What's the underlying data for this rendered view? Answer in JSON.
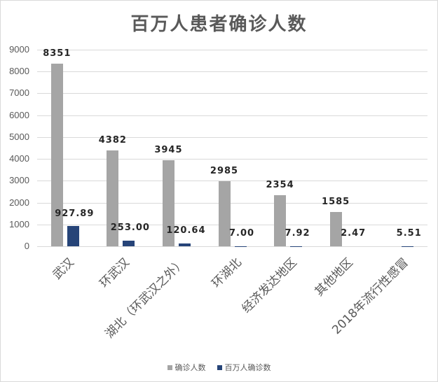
{
  "chart_data": {
    "type": "bar",
    "title": "百万人患者确诊人数",
    "xlabel": "",
    "ylabel": "",
    "ylim": [
      0,
      9000
    ],
    "yticks": [
      0,
      1000,
      2000,
      3000,
      4000,
      5000,
      6000,
      7000,
      8000,
      9000
    ],
    "grid": true,
    "legend_position": "bottom",
    "categories": [
      "武汉",
      "环武汉",
      "湖北（环武汉之外）",
      "环湖北",
      "经济发达地区",
      "其他地区",
      "2018年流行性感冒"
    ],
    "series": [
      {
        "name": "确诊人数",
        "color": "#a5a5a5",
        "values": [
          8351,
          4382,
          3945,
          2985,
          2354,
          1585,
          null
        ],
        "labels": [
          "8351",
          "4382",
          "3945",
          "2985",
          "2354",
          "1585",
          ""
        ]
      },
      {
        "name": "百万人确诊数",
        "color": "#264478",
        "values": [
          927.89,
          253.0,
          120.64,
          7.0,
          7.92,
          2.47,
          5.51
        ],
        "labels": [
          "927.89",
          "253.00",
          "120.64",
          "7.00",
          "7.92",
          "2.47",
          "5.51"
        ]
      }
    ]
  }
}
